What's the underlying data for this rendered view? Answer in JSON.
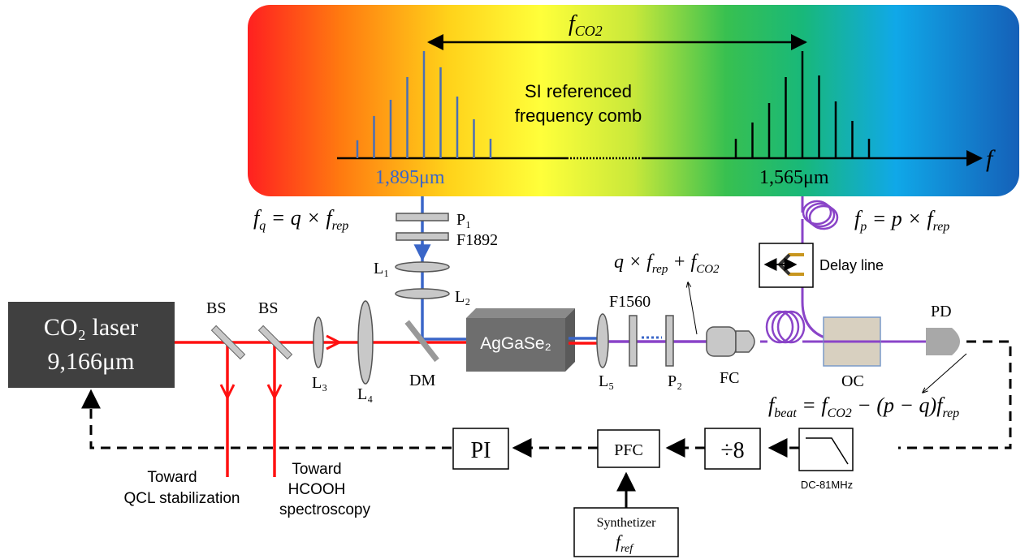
{
  "comb": {
    "f_co2_label": "f",
    "f_co2_sub": "CO2",
    "title_line1": "SI referenced",
    "title_line2": "frequency comb",
    "axis_label": "f",
    "left_wavelength": "1,895μm",
    "right_wavelength": "1,565μm",
    "colors": {
      "blue_line": "#4a6fb5",
      "black_line": "#000000"
    }
  },
  "laser": {
    "line1": "CO₂ laser",
    "line2": "9,166μm"
  },
  "labels": {
    "bs1": "BS",
    "bs2": "BS",
    "l3": "L₃",
    "l4": "L₄",
    "dm": "DM",
    "l1": "L₁",
    "l2": "L₂",
    "p1": "P₁",
    "f1892": "F1892",
    "crystal": "AgGaSe₂",
    "l5": "L₅",
    "f1560": "F1560",
    "p2": "P₂",
    "fc": "FC",
    "oc": "OC",
    "pd": "PD",
    "delay_line": "Delay line",
    "toward_qcl_1": "Toward",
    "toward_qcl_2": "QCL stabilization",
    "toward_hcooh_1": "Toward",
    "toward_hcooh_2": "HCOOH",
    "toward_hcooh_3": "spectroscopy",
    "pi": "PI",
    "pfc": "PFC",
    "div8": "÷8",
    "filter": "DC-81MHz",
    "synth": "Synthetizer",
    "f_ref": "f",
    "f_ref_sub": "ref"
  },
  "equations": {
    "fq": "fq = q × frep",
    "fp": "fp = p × frep",
    "sum": "q × frep + fCO2",
    "fbeat": "fbeat = fCO2 − (p − q)frep"
  },
  "beam_colors": {
    "red": "#ff1111",
    "blue": "#3a66c8",
    "purple": "#8a44c8"
  }
}
